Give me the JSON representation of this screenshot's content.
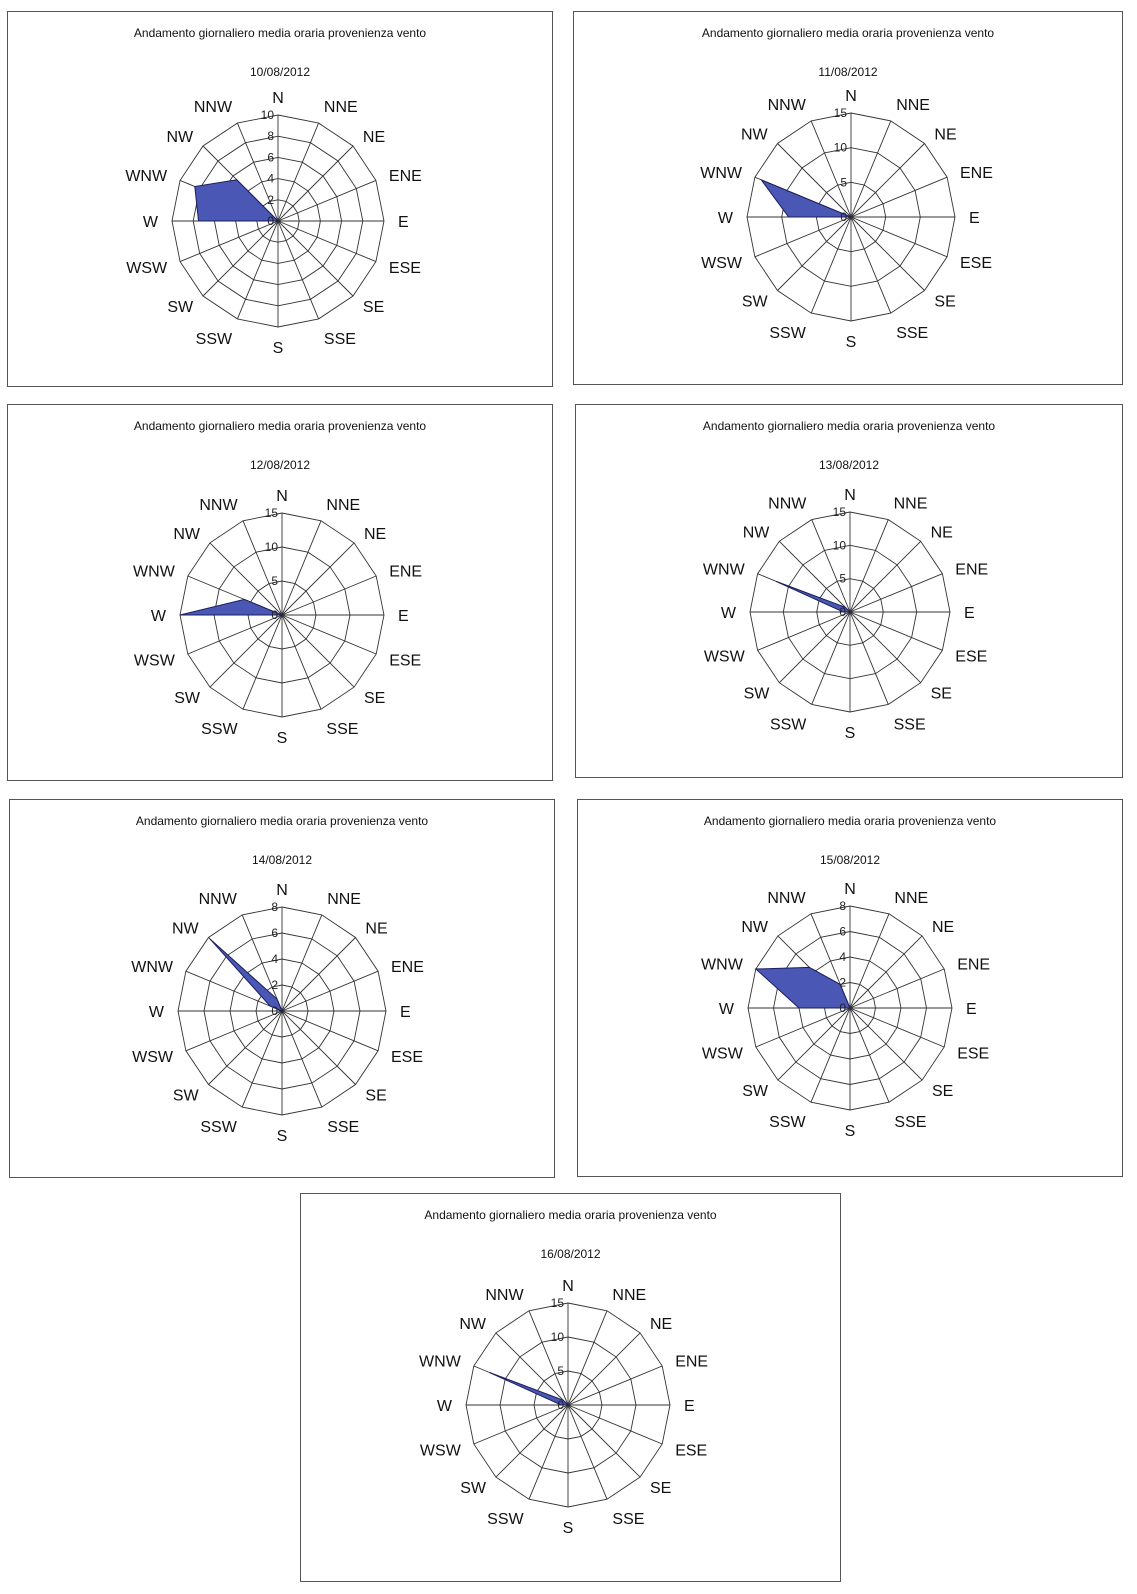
{
  "chart_data": [
    {
      "type": "radar",
      "title": "Andamento giornaliero media oraria provenienza vento",
      "subtitle": "10/08/2012",
      "categories": [
        "N",
        "NNE",
        "NE",
        "ENE",
        "E",
        "ESE",
        "SE",
        "SSE",
        "S",
        "SSW",
        "SW",
        "WSW",
        "W",
        "WNW",
        "NW",
        "NNW"
      ],
      "ticks": [
        "0",
        "2",
        "4",
        "6",
        "8",
        "10"
      ],
      "rmax": 10,
      "values": [
        0,
        0,
        0,
        0,
        0,
        0,
        0,
        0,
        0,
        0,
        0,
        0,
        7.5,
        8.5,
        5.5,
        0
      ]
    },
    {
      "type": "radar",
      "title": "Andamento giornaliero media oraria provenienza vento",
      "subtitle": "11/08/2012",
      "categories": [
        "N",
        "NNE",
        "NE",
        "ENE",
        "E",
        "ESE",
        "SE",
        "SSE",
        "S",
        "SSW",
        "SW",
        "WSW",
        "W",
        "WNW",
        "NW",
        "NNW"
      ],
      "ticks": [
        "0",
        "5",
        "10",
        "15"
      ],
      "rmax": 15,
      "values": [
        0,
        0,
        0,
        0,
        0,
        0,
        0,
        0,
        0,
        0,
        0,
        0,
        9,
        14,
        0,
        0
      ]
    },
    {
      "type": "radar",
      "title": "Andamento giornaliero media oraria provenienza vento",
      "subtitle": "12/08/2012",
      "categories": [
        "N",
        "NNE",
        "NE",
        "ENE",
        "E",
        "ESE",
        "SE",
        "SSE",
        "S",
        "SSW",
        "SW",
        "WSW",
        "W",
        "WNW",
        "NW",
        "NNW"
      ],
      "ticks": [
        "0",
        "5",
        "10",
        "15"
      ],
      "rmax": 15,
      "values": [
        0,
        0,
        0,
        0,
        0,
        0,
        0,
        0,
        0,
        0,
        0,
        0,
        15,
        6,
        0,
        0
      ]
    },
    {
      "type": "radar",
      "title": "Andamento giornaliero media oraria provenienza vento",
      "subtitle": "13/08/2012",
      "categories": [
        "N",
        "NNE",
        "NE",
        "ENE",
        "E",
        "ESE",
        "SE",
        "SSE",
        "S",
        "SSW",
        "SW",
        "WSW",
        "W",
        "WNW",
        "NW",
        "NNW"
      ],
      "ticks": [
        "0",
        "5",
        "10",
        "15"
      ],
      "rmax": 15,
      "values": [
        0,
        0,
        0,
        0,
        0,
        0,
        0,
        0,
        0,
        0,
        0,
        0,
        1,
        12,
        1,
        0
      ]
    },
    {
      "type": "radar",
      "title": "Andamento giornaliero media oraria provenienza vento",
      "subtitle": "14/08/2012",
      "categories": [
        "N",
        "NNE",
        "NE",
        "ENE",
        "E",
        "ESE",
        "SE",
        "SSE",
        "S",
        "SSW",
        "SW",
        "WSW",
        "W",
        "WNW",
        "NW",
        "NNW"
      ],
      "ticks": [
        "0",
        "2",
        "4",
        "6",
        "8"
      ],
      "rmax": 8,
      "values": [
        0,
        0,
        0,
        0,
        0,
        0,
        0,
        0,
        0,
        0,
        0,
        0,
        0,
        1,
        7.8,
        1
      ]
    },
    {
      "type": "radar",
      "title": "Andamento giornaliero media oraria provenienza vento",
      "subtitle": "15/08/2012",
      "categories": [
        "N",
        "NNE",
        "NE",
        "ENE",
        "E",
        "ESE",
        "SE",
        "SSE",
        "S",
        "SSW",
        "SW",
        "WSW",
        "W",
        "WNW",
        "NW",
        "NNW"
      ],
      "ticks": [
        "0",
        "2",
        "4",
        "6",
        "8"
      ],
      "rmax": 8,
      "values": [
        0,
        0,
        0,
        0,
        0,
        0,
        0,
        0,
        0,
        0,
        0,
        0,
        4,
        8,
        4.5,
        2
      ]
    },
    {
      "type": "radar",
      "title": "Andamento giornaliero media oraria provenienza vento",
      "subtitle": "16/08/2012",
      "categories": [
        "N",
        "NNE",
        "NE",
        "ENE",
        "E",
        "ESE",
        "SE",
        "SSE",
        "S",
        "SSW",
        "SW",
        "WSW",
        "W",
        "WNW",
        "NW",
        "NNW"
      ],
      "ticks": [
        "0",
        "5",
        "10",
        "15"
      ],
      "rmax": 15,
      "values": [
        0,
        0,
        0,
        0,
        0,
        0,
        0,
        0,
        0,
        0,
        0,
        0,
        1,
        12.5,
        1,
        0
      ]
    }
  ],
  "colors": {
    "fill": "#4a57b5",
    "stroke": "#1b1f5c",
    "grid": "#333333"
  }
}
